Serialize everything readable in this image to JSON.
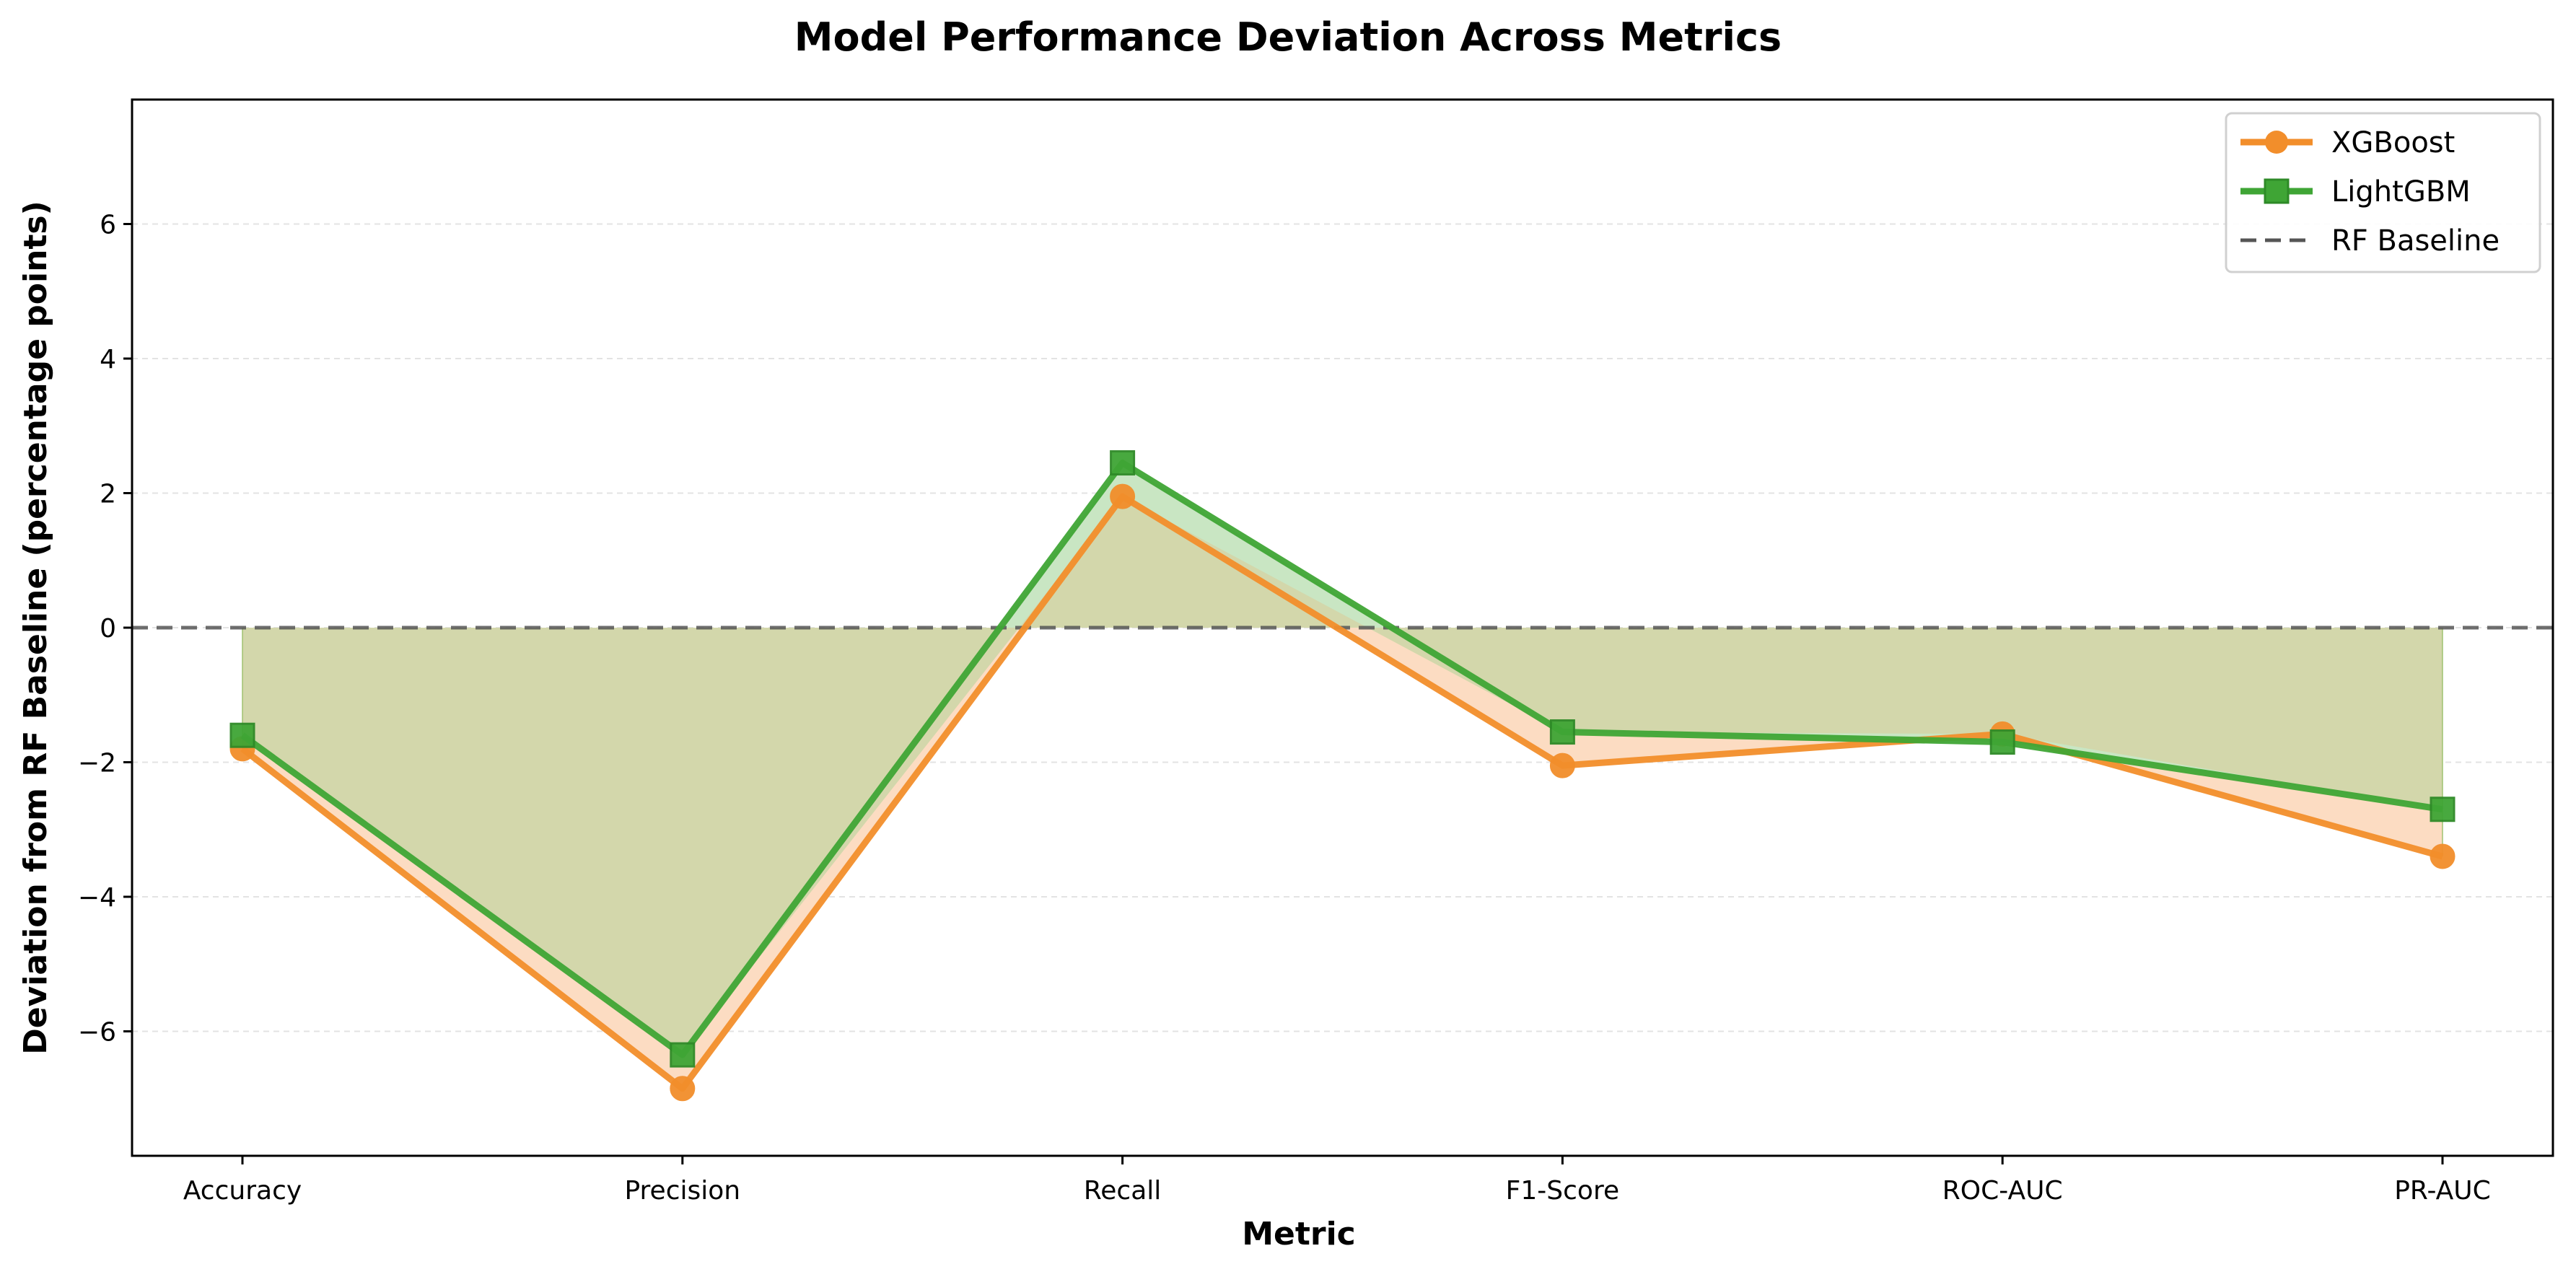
{
  "chart_data": {
    "type": "line",
    "title": "Model Performance Deviation Across Metrics",
    "xlabel": "Metric",
    "ylabel": "Deviation from RF Baseline (percentage points)",
    "categories": [
      "Accuracy",
      "Precision",
      "Recall",
      "F1-Score",
      "ROC-AUC",
      "PR-AUC"
    ],
    "series": [
      {
        "name": "XGBoost",
        "values": [
          -1.8,
          -6.85,
          1.95,
          -2.05,
          -1.58,
          -3.4
        ],
        "color": "#f28e2b",
        "marker": "circle",
        "fill": "#fcdcc2"
      },
      {
        "name": "LightGBM",
        "values": [
          -1.6,
          -6.35,
          2.45,
          -1.55,
          -1.7,
          -2.7
        ],
        "color": "#3fa535",
        "marker": "square",
        "fill": "#c9e6c3"
      }
    ],
    "baseline": {
      "name": "RF Baseline",
      "value": 0,
      "color": "#555555",
      "style": "dashed"
    },
    "overlap_fill": "#d3d7ab",
    "ylim": [
      -7.85,
      7.85
    ],
    "yticks": [
      -6,
      -4,
      -2,
      0,
      2,
      4,
      6
    ],
    "ytick_labels": [
      "−6",
      "−4",
      "−2",
      "0",
      "2",
      "4",
      "6"
    ],
    "grid": "y-only, dashed light gray",
    "legend_position": "top-right"
  }
}
